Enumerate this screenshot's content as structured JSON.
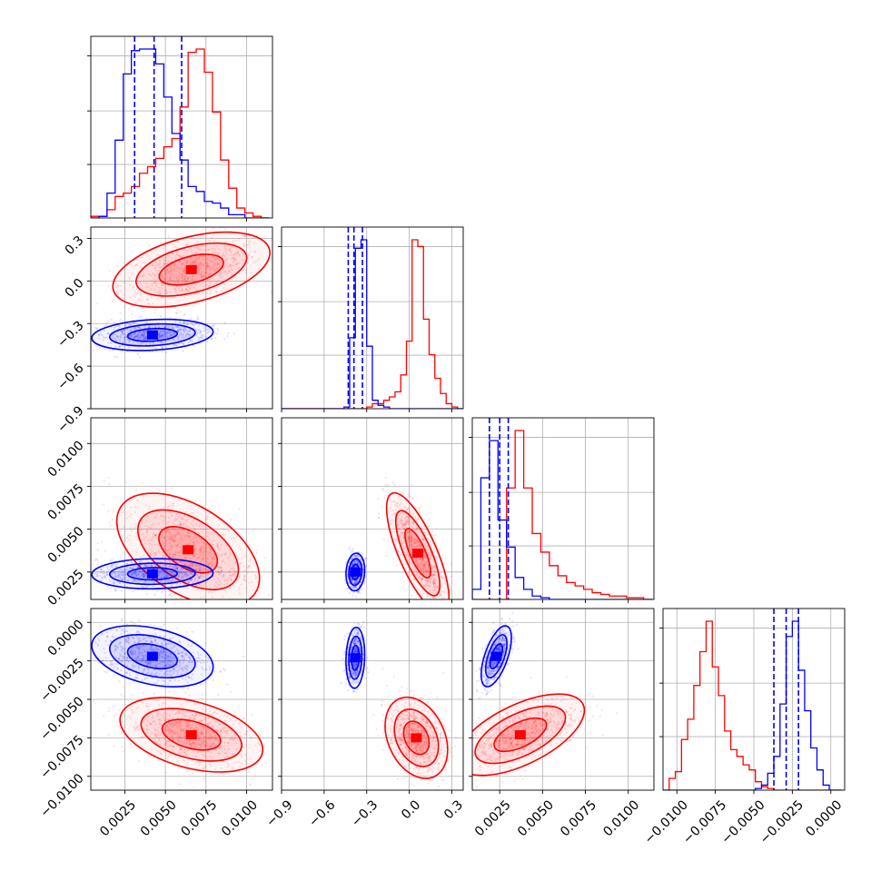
{
  "chart_data": {
    "type": "corner",
    "grid": true,
    "series_colors": [
      "#ff0000",
      "#0000ff"
    ],
    "parameters": [
      {
        "range": [
          0.0004,
          0.0116
        ],
        "ticks": [
          0.0025,
          0.005,
          0.0075,
          0.01
        ],
        "tick_labels": [
          "0.0025",
          "0.0050",
          "0.0075",
          "0.0100"
        ]
      },
      {
        "range": [
          -0.9,
          0.38
        ],
        "ticks": [
          -0.9,
          -0.6,
          -0.3,
          0.0,
          0.3
        ],
        "tick_labels": [
          "−0.9",
          "−0.6",
          "−0.3",
          "0.0",
          "0.3"
        ]
      },
      {
        "range": [
          0.0009,
          0.0115
        ],
        "ticks": [
          0.0025,
          0.005,
          0.0075,
          0.01
        ],
        "tick_labels": [
          "0.0025",
          "0.0050",
          "0.0075",
          "0.0100"
        ]
      },
      {
        "range": [
          -0.0109,
          0.0009
        ],
        "ticks": [
          -0.01,
          -0.0075,
          -0.005,
          -0.0025,
          0.0
        ],
        "tick_labels": [
          "−0.0100",
          "−0.0075",
          "−0.0050",
          "−0.0025",
          "0.0000"
        ]
      }
    ],
    "histograms": [
      {
        "param": 0,
        "quantiles_blue": [
          0.0031,
          0.0043,
          0.006
        ],
        "red": {
          "edges": [
            0.0004,
            0.0009,
            0.0014,
            0.0019,
            0.0024,
            0.0029,
            0.0034,
            0.0039,
            0.0044,
            0.0049,
            0.0054,
            0.0059,
            0.0064,
            0.0069,
            0.0074,
            0.0079,
            0.0084,
            0.0089,
            0.0094,
            0.0099,
            0.0104,
            0.0109,
            0.0114
          ],
          "counts": [
            1,
            1,
            5,
            13,
            15,
            19,
            27,
            31,
            36,
            43,
            48,
            67,
            100,
            102,
            88,
            64,
            35,
            18,
            6,
            3,
            1,
            0
          ]
        },
        "blue": {
          "edges": [
            0.0004,
            0.0009,
            0.0014,
            0.0019,
            0.0024,
            0.0029,
            0.0034,
            0.0039,
            0.0044,
            0.0049,
            0.0054,
            0.0059,
            0.0064,
            0.0069,
            0.0074,
            0.0079,
            0.0084,
            0.0089,
            0.0094,
            0.0099,
            0.0104,
            0.0109,
            0.0114
          ],
          "counts": [
            0,
            1,
            15,
            47,
            87,
            101,
            102,
            102,
            93,
            73,
            51,
            35,
            19,
            16,
            10,
            9,
            6,
            2,
            2,
            0,
            0,
            0
          ]
        }
      },
      {
        "param": 1,
        "quantiles_blue": [
          -0.43,
          -0.39,
          -0.33
        ],
        "red": {
          "edges": [
            -0.9,
            -0.86,
            -0.82,
            -0.78,
            -0.74,
            -0.7,
            -0.66,
            -0.62,
            -0.58,
            -0.54,
            -0.5,
            -0.46,
            -0.42,
            -0.38,
            -0.34,
            -0.3,
            -0.26,
            -0.22,
            -0.18,
            -0.14,
            -0.1,
            -0.06,
            -0.02,
            0.02,
            0.06,
            0.1,
            0.14,
            0.18,
            0.22,
            0.26,
            0.3,
            0.34,
            0.38
          ],
          "counts": [
            0,
            0,
            0,
            0,
            0,
            0,
            0,
            0,
            0,
            0,
            0,
            0,
            0,
            0,
            0,
            1,
            3,
            3,
            5,
            7,
            10,
            20,
            40,
            100,
            96,
            53,
            32,
            18,
            9,
            3,
            1,
            0
          ]
        },
        "blue": {
          "edges": [
            -0.9,
            -0.86,
            -0.82,
            -0.78,
            -0.74,
            -0.7,
            -0.66,
            -0.62,
            -0.58,
            -0.54,
            -0.5,
            -0.46,
            -0.42,
            -0.38,
            -0.34,
            -0.3,
            -0.26,
            -0.22,
            -0.18,
            -0.14,
            -0.1,
            -0.06,
            -0.02,
            0.02,
            0.06,
            0.1,
            0.14,
            0.18,
            0.22,
            0.26,
            0.3,
            0.34,
            0.38
          ],
          "counts": [
            0,
            0,
            0,
            0,
            0,
            0,
            0,
            0,
            0,
            0,
            0,
            1,
            42,
            95,
            100,
            37,
            5,
            2,
            1,
            0,
            0,
            0,
            0,
            0,
            0,
            0,
            0,
            0,
            0,
            0,
            0,
            0
          ]
        }
      },
      {
        "param": 2,
        "quantiles_blue": [
          0.0019,
          0.0025,
          0.003
        ],
        "red": {
          "edges": [
            0.0009,
            0.0014,
            0.0019,
            0.0024,
            0.0029,
            0.0034,
            0.0039,
            0.0044,
            0.0049,
            0.0054,
            0.0059,
            0.0064,
            0.0069,
            0.0074,
            0.0079,
            0.0084,
            0.0089,
            0.0094,
            0.0099,
            0.0104,
            0.0109,
            0.0114
          ],
          "counts": [
            0,
            0,
            0,
            0,
            66,
            100,
            66,
            39,
            28,
            20,
            14,
            10,
            8,
            6,
            4,
            3,
            2,
            2,
            1,
            1,
            0
          ]
        },
        "blue": {
          "edges": [
            0.0009,
            0.0014,
            0.0019,
            0.0024,
            0.0029,
            0.0034,
            0.0039,
            0.0044,
            0.0049,
            0.0054,
            0.0059,
            0.0064,
            0.0069,
            0.0074,
            0.0079,
            0.0084,
            0.0089,
            0.0094,
            0.0099,
            0.0104,
            0.0109,
            0.0114
          ],
          "counts": [
            6,
            72,
            94,
            47,
            31,
            13,
            6,
            2,
            1,
            0,
            0,
            0,
            0,
            0,
            0,
            0,
            0,
            0,
            0,
            0,
            0
          ]
        }
      },
      {
        "param": 3,
        "quantiles_blue": [
          -0.0037,
          -0.0029,
          -0.0021
        ],
        "red": {
          "edges": [
            -0.0109,
            -0.0105,
            -0.0101,
            -0.0097,
            -0.0093,
            -0.0089,
            -0.0085,
            -0.0081,
            -0.0077,
            -0.0073,
            -0.0069,
            -0.0065,
            -0.0061,
            -0.0057,
            -0.0053,
            -0.0049,
            -0.0045,
            -0.0041,
            -0.0037,
            -0.0033,
            -0.0029,
            -0.0025,
            -0.0021,
            -0.0017,
            -0.0013,
            -0.0009,
            -0.0005,
            -0.0001,
            0.0003,
            0.0007
          ],
          "counts": [
            0,
            7,
            11,
            30,
            42,
            62,
            82,
            100,
            73,
            56,
            35,
            24,
            20,
            15,
            12,
            5,
            2,
            1,
            0,
            0,
            0,
            0,
            0,
            0,
            0,
            0,
            0,
            0,
            0
          ]
        },
        "blue": {
          "edges": [
            -0.0109,
            -0.0105,
            -0.0101,
            -0.0097,
            -0.0093,
            -0.0089,
            -0.0085,
            -0.0081,
            -0.0077,
            -0.0073,
            -0.0069,
            -0.0065,
            -0.0061,
            -0.0057,
            -0.0053,
            -0.0049,
            -0.0045,
            -0.0041,
            -0.0037,
            -0.0033,
            -0.0029,
            -0.0025,
            -0.0021,
            -0.0017,
            -0.0013,
            -0.0009,
            -0.0005,
            -0.0001,
            0.0003,
            0.0007
          ],
          "counts": [
            0,
            0,
            0,
            0,
            0,
            0,
            0,
            0,
            0,
            0,
            0,
            0,
            0,
            0,
            0,
            1,
            3,
            10,
            20,
            51,
            91,
            100,
            71,
            47,
            25,
            12,
            3,
            0,
            0
          ]
        }
      }
    ],
    "pairs": [
      {
        "x": 0,
        "y": 1,
        "red": {
          "center": [
            0.0066,
            0.08
          ],
          "spread": [
            0.0022,
            0.12
          ],
          "rho": 0.45
        },
        "blue": {
          "center": [
            0.0042,
            -0.38
          ],
          "spread": [
            0.0017,
            0.05
          ],
          "rho": 0.2
        }
      },
      {
        "x": 0,
        "y": 2,
        "red": {
          "center": [
            0.0064,
            0.0038
          ],
          "spread": [
            0.002,
            0.0015
          ],
          "rho": -0.5
        },
        "blue": {
          "center": [
            0.0042,
            0.0024
          ],
          "spread": [
            0.0017,
            0.0004
          ],
          "rho": 0.05
        }
      },
      {
        "x": 1,
        "y": 2,
        "red": {
          "center": [
            0.06,
            0.0036
          ],
          "spread": [
            0.1,
            0.0016
          ],
          "rho": -0.75
        },
        "blue": {
          "center": [
            -0.38,
            0.0025
          ],
          "spread": [
            0.03,
            0.0005
          ],
          "rho": 0.1
        }
      },
      {
        "x": 0,
        "y": 3,
        "red": {
          "center": [
            0.0066,
            -0.0073
          ],
          "spread": [
            0.002,
            0.0011
          ],
          "rho": -0.4
        },
        "blue": {
          "center": [
            0.0042,
            -0.0022
          ],
          "spread": [
            0.0017,
            0.0009
          ],
          "rho": -0.35
        }
      },
      {
        "x": 1,
        "y": 3,
        "red": {
          "center": [
            0.05,
            -0.0075
          ],
          "spread": [
            0.1,
            0.0012
          ],
          "rho": -0.3
        },
        "blue": {
          "center": [
            -0.38,
            -0.0023
          ],
          "spread": [
            0.03,
            0.0009
          ],
          "rho": 0.1
        }
      },
      {
        "x": 2,
        "y": 3,
        "red": {
          "center": [
            0.0037,
            -0.0073
          ],
          "spread": [
            0.0017,
            0.0012
          ],
          "rho": 0.6
        },
        "blue": {
          "center": [
            0.0023,
            -0.0022
          ],
          "spread": [
            0.0004,
            0.0009
          ],
          "rho": 0.6
        }
      }
    ]
  }
}
